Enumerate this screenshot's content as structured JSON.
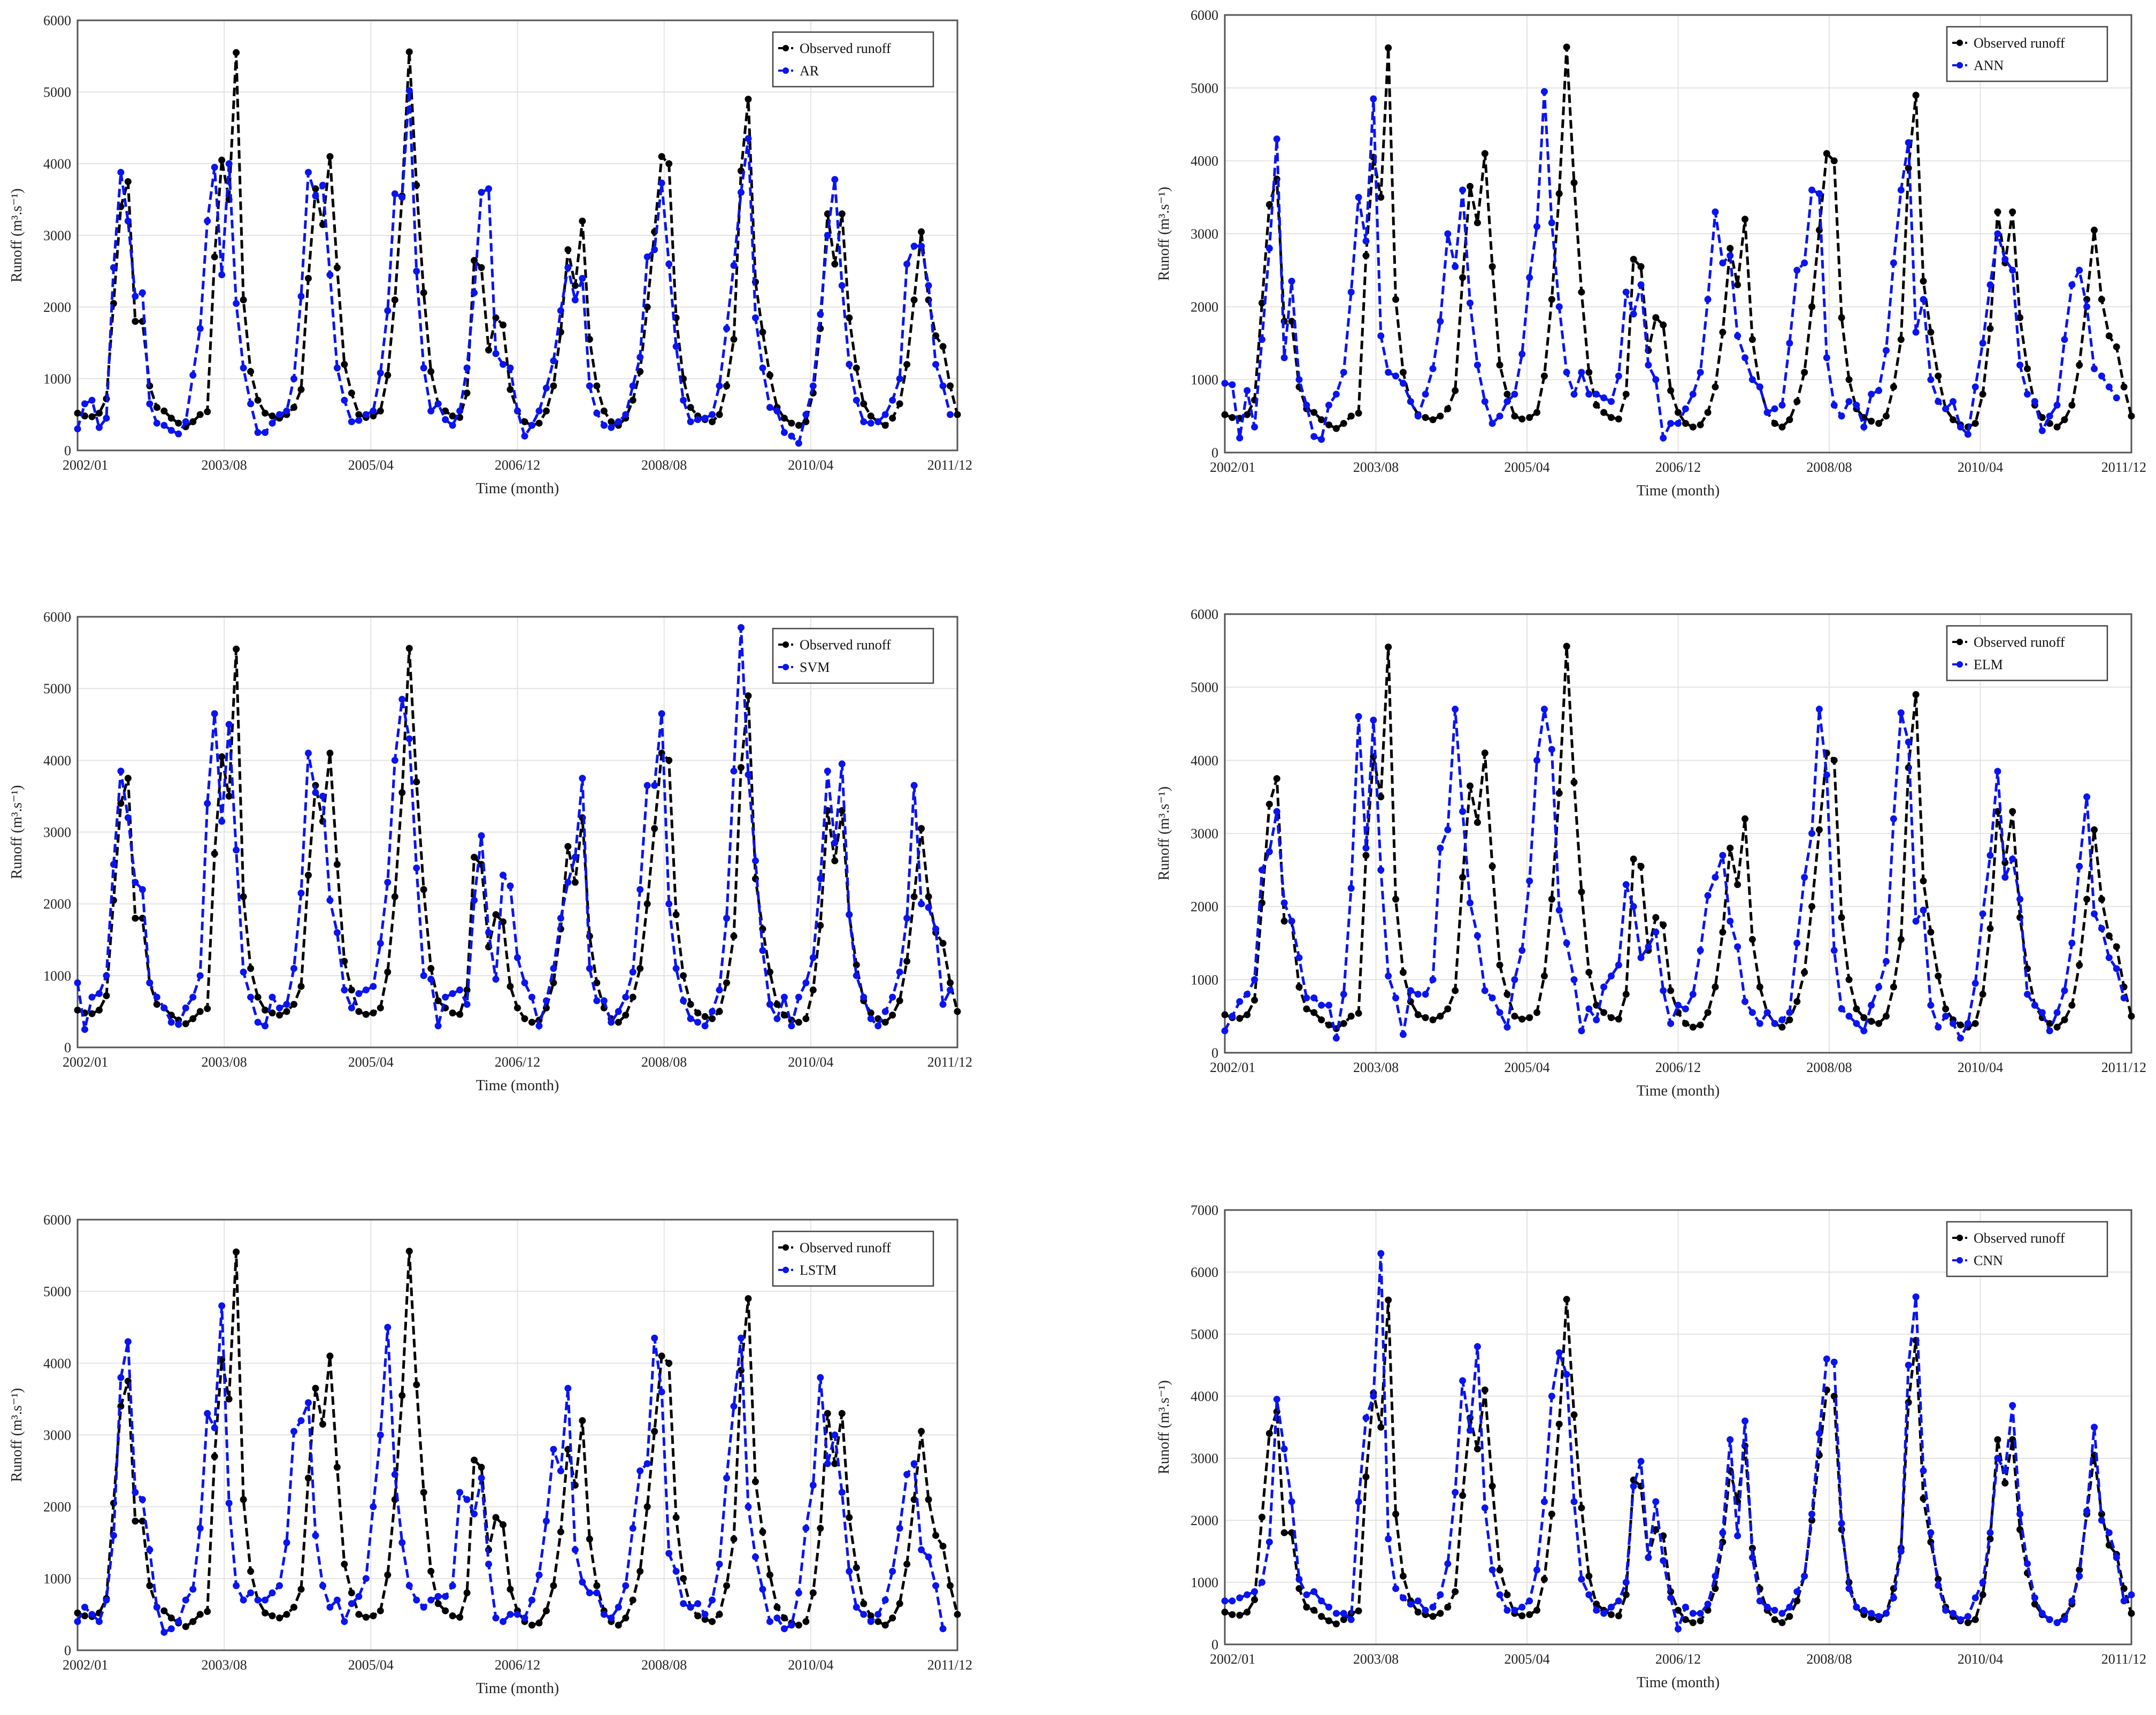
{
  "colors": {
    "observed": "#000000",
    "model": "#0a14f0"
  },
  "x_tick_labels": [
    "2002/01",
    "2003/08",
    "2005/04",
    "2006/12",
    "2008/08",
    "2010/04",
    "2011/12"
  ],
  "xlabel": "Time (month)",
  "ylabel": "Runoff (m³.s⁻¹)",
  "observed_runoff": [
    520,
    480,
    470,
    520,
    720,
    2050,
    3400,
    3750,
    1800,
    1800,
    900,
    600,
    550,
    450,
    380,
    330,
    400,
    500,
    540,
    2700,
    4050,
    3500,
    5550,
    2100,
    1100,
    700,
    520,
    480,
    450,
    500,
    600,
    850,
    2400,
    3650,
    3150,
    4100,
    2550,
    1200,
    800,
    500,
    460,
    480,
    550,
    1050,
    2100,
    3550,
    5560,
    3700,
    2200,
    1100,
    650,
    550,
    480,
    460,
    800,
    2650,
    2550,
    1400,
    1850,
    1750,
    850,
    550,
    400,
    350,
    380,
    550,
    900,
    1650,
    2800,
    2300,
    3200,
    1550,
    900,
    550,
    400,
    350,
    450,
    700,
    1100,
    2000,
    3050,
    4100,
    4000,
    1850,
    1000,
    600,
    480,
    430,
    400,
    500,
    900,
    1550,
    3900,
    4900,
    2350,
    1650,
    1050,
    600,
    450,
    380,
    350,
    400,
    800,
    1700,
    3300,
    2600,
    3300,
    1850,
    1150,
    650,
    480,
    400,
    350,
    450,
    650,
    1200,
    2100,
    3050,
    2100,
    1600,
    1450,
    900,
    500
  ],
  "charts": [
    {
      "model_name": "AR",
      "yticks": [
        0,
        1000,
        2000,
        3000,
        4000,
        5000,
        6000
      ],
      "model_values": [
        300,
        650,
        700,
        320,
        450,
        2550,
        3880,
        3200,
        2150,
        2200,
        650,
        380,
        350,
        280,
        230,
        400,
        1050,
        1700,
        3200,
        3950,
        2450,
        4000,
        2050,
        1150,
        650,
        250,
        250,
        380,
        500,
        550,
        1000,
        2150,
        3880,
        3550,
        3700,
        2450,
        1150,
        700,
        400,
        420,
        500,
        550,
        1080,
        1950,
        3580,
        3530,
        5020,
        2500,
        1150,
        550,
        650,
        430,
        350,
        550,
        1150,
        2200,
        3600,
        3650,
        1350,
        1200,
        1150,
        550,
        200,
        350,
        550,
        870,
        1250,
        1950,
        2550,
        2100,
        2400,
        900,
        520,
        350,
        320,
        400,
        500,
        900,
        1300,
        2700,
        2800,
        3730,
        2600,
        1450,
        700,
        400,
        430,
        450,
        500,
        900,
        1700,
        2580,
        3600,
        4350,
        1850,
        1150,
        600,
        550,
        250,
        200,
        100,
        500,
        900,
        1900,
        3000,
        3780,
        2300,
        1200,
        700,
        400,
        380,
        400,
        500,
        700,
        1000,
        2600,
        2850,
        2850,
        2300,
        1200,
        900,
        500
      ]
    },
    {
      "model_name": "ANN",
      "yticks": [
        0,
        1000,
        2000,
        3000,
        4000,
        5000,
        6000
      ],
      "model_values": [
        950,
        930,
        200,
        850,
        350,
        1550,
        2800,
        4300,
        1300,
        2350,
        1000,
        650,
        220,
        180,
        650,
        800,
        1100,
        2200,
        3500,
        2900,
        4850,
        1600,
        1100,
        1050,
        950,
        700,
        500,
        800,
        1150,
        1800,
        3000,
        2550,
        3600,
        2050,
        1200,
        700,
        400,
        500,
        700,
        800,
        1350,
        2400,
        3100,
        4950,
        3150,
        2000,
        1100,
        800,
        1100,
        800,
        800,
        750,
        700,
        1050,
        2200,
        1900,
        2300,
        1200,
        1000,
        200,
        400,
        400,
        600,
        800,
        1100,
        2100,
        3300,
        2600,
        2700,
        1600,
        1300,
        1000,
        900,
        550,
        600,
        650,
        1500,
        2500,
        2600,
        3600,
        3550,
        1300,
        650,
        500,
        700,
        650,
        350,
        800,
        850,
        1400,
        2600,
        3600,
        4250,
        1650,
        2100,
        1000,
        700,
        600,
        700,
        350,
        250,
        900,
        1500,
        2300,
        3000,
        2650,
        2500,
        1200,
        800,
        700,
        300,
        500,
        650,
        1550,
        2300,
        2500,
        2000,
        1150,
        1050,
        900,
        750
      ]
    },
    {
      "model_name": "SVM",
      "yticks": [
        0,
        1000,
        2000,
        3000,
        4000,
        5000,
        6000
      ],
      "model_values": [
        900,
        250,
        700,
        750,
        1000,
        2550,
        3850,
        3200,
        2300,
        2200,
        900,
        700,
        550,
        350,
        320,
        550,
        700,
        1000,
        3400,
        4650,
        3150,
        4500,
        2750,
        1050,
        700,
        350,
        300,
        700,
        550,
        600,
        1100,
        2150,
        4100,
        3550,
        3500,
        2050,
        1600,
        800,
        550,
        750,
        800,
        850,
        1450,
        2300,
        4000,
        4850,
        4300,
        2500,
        1000,
        950,
        300,
        700,
        750,
        800,
        600,
        2050,
        2950,
        1600,
        950,
        2400,
        2250,
        1250,
        900,
        700,
        300,
        650,
        1100,
        1800,
        2300,
        2650,
        3750,
        1100,
        650,
        650,
        350,
        500,
        700,
        1050,
        2200,
        3650,
        3650,
        4650,
        2000,
        1100,
        650,
        400,
        350,
        300,
        500,
        800,
        1800,
        3850,
        5850,
        3800,
        2600,
        1350,
        600,
        400,
        700,
        300,
        700,
        900,
        1250,
        2350,
        3850,
        2850,
        3950,
        1850,
        1000,
        700,
        400,
        300,
        500,
        700,
        1050,
        1800,
        3650,
        2000,
        1950,
        1650,
        600,
        800
      ]
    },
    {
      "model_name": "ELM",
      "yticks": [
        0,
        1000,
        2000,
        3000,
        4000,
        5000,
        6000
      ],
      "model_values": [
        300,
        500,
        700,
        800,
        1000,
        2500,
        2750,
        3300,
        2050,
        1800,
        1300,
        750,
        750,
        650,
        650,
        200,
        800,
        2250,
        4600,
        2800,
        4550,
        2500,
        1050,
        750,
        250,
        850,
        800,
        800,
        1000,
        2800,
        3050,
        4700,
        3300,
        2050,
        1600,
        850,
        750,
        550,
        350,
        1000,
        1400,
        2350,
        4000,
        4700,
        4150,
        1950,
        1500,
        1000,
        300,
        600,
        450,
        900,
        1050,
        1200,
        2300,
        2000,
        1300,
        1450,
        1650,
        850,
        400,
        650,
        600,
        800,
        1400,
        2150,
        2400,
        2700,
        1800,
        1450,
        700,
        550,
        400,
        550,
        400,
        450,
        550,
        1500,
        2400,
        3000,
        4700,
        3800,
        1400,
        600,
        500,
        400,
        300,
        650,
        900,
        1250,
        3200,
        4650,
        4250,
        1800,
        1950,
        650,
        350,
        500,
        400,
        200,
        400,
        950,
        1900,
        2700,
        3850,
        2400,
        2650,
        2100,
        800,
        650,
        550,
        300,
        550,
        850,
        1500,
        2550,
        3500,
        1900,
        1700,
        1300,
        1150,
        750
      ]
    },
    {
      "model_name": "LSTM",
      "yticks": [
        0,
        1000,
        2000,
        3000,
        4000,
        5000,
        6000
      ],
      "model_values": [
        400,
        600,
        500,
        400,
        700,
        1600,
        3800,
        4300,
        2200,
        2100,
        1400,
        600,
        250,
        300,
        400,
        700,
        850,
        1700,
        3300,
        3100,
        4800,
        2050,
        900,
        700,
        800,
        700,
        700,
        800,
        900,
        1500,
        3050,
        3200,
        3450,
        1600,
        900,
        600,
        700,
        400,
        650,
        750,
        1000,
        2000,
        3000,
        4500,
        2450,
        1500,
        900,
        700,
        600,
        700,
        750,
        750,
        900,
        2200,
        2100,
        1900,
        2400,
        1200,
        450,
        400,
        500,
        500,
        450,
        700,
        1050,
        1800,
        2800,
        2500,
        3650,
        1400,
        950,
        800,
        800,
        500,
        450,
        600,
        900,
        1700,
        2500,
        2600,
        4350,
        3600,
        1350,
        1100,
        650,
        600,
        650,
        500,
        700,
        1200,
        2400,
        3400,
        4350,
        2000,
        1300,
        850,
        400,
        450,
        300,
        350,
        800,
        1700,
        2300,
        3800,
        2600,
        3000,
        2200,
        1100,
        600,
        500,
        400,
        500,
        700,
        1100,
        1700,
        2450,
        2600,
        1400,
        1300,
        900,
        300
      ]
    },
    {
      "model_name": "CNN",
      "yticks": [
        0,
        1000,
        2000,
        3000,
        4000,
        5000,
        6000,
        7000
      ],
      "model_values": [
        700,
        700,
        750,
        800,
        850,
        1000,
        1650,
        3950,
        3150,
        2300,
        1050,
        800,
        850,
        700,
        600,
        500,
        500,
        400,
        2300,
        3650,
        4000,
        6300,
        1700,
        900,
        750,
        650,
        700,
        550,
        600,
        800,
        1300,
        2450,
        4250,
        3450,
        4800,
        2200,
        1200,
        800,
        550,
        550,
        600,
        700,
        1200,
        2300,
        4000,
        4700,
        4350,
        2300,
        1050,
        800,
        550,
        500,
        600,
        700,
        1000,
        2550,
        2950,
        1400,
        2300,
        1350,
        750,
        250,
        600,
        500,
        500,
        650,
        1100,
        1800,
        3300,
        1750,
        3600,
        1400,
        700,
        600,
        550,
        500,
        600,
        850,
        1100,
        2100,
        3400,
        4600,
        4550,
        1950,
        900,
        600,
        550,
        500,
        450,
        500,
        750,
        1500,
        4500,
        5600,
        2800,
        1800,
        950,
        550,
        500,
        400,
        450,
        750,
        1000,
        1800,
        3000,
        2800,
        3850,
        2100,
        1300,
        750,
        500,
        400,
        350,
        400,
        700,
        1100,
        2150,
        3500,
        2000,
        1800,
        1400,
        700,
        800
      ]
    }
  ]
}
